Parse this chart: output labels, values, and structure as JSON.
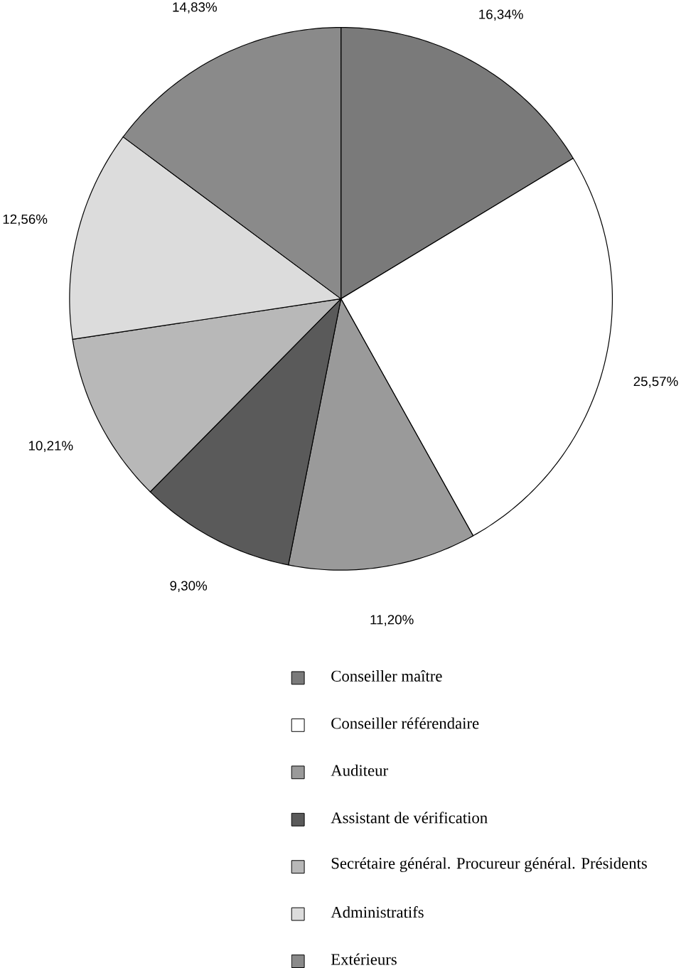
{
  "chart_data": {
    "type": "pie",
    "categories": [
      "Conseiller maître",
      "Conseiller référendaire",
      "Auditeur",
      "Assistant de vérification",
      "Secrétaire général. Procureur général. Présidents",
      "Administratifs",
      "Extérieurs"
    ],
    "values": [
      16.34,
      25.57,
      11.2,
      9.3,
      10.21,
      12.56,
      14.83
    ],
    "value_labels": [
      "16,34%",
      "25,57%",
      "11,20%",
      "9,30%",
      "10,21%",
      "12,56%",
      "14,83%"
    ],
    "colors": [
      "#7a7a7a",
      "#ffffff",
      "#9a9a9a",
      "#5a5a5a",
      "#b8b8b8",
      "#dcdcdc",
      "#8a8a8a"
    ],
    "legend": "bottom"
  }
}
